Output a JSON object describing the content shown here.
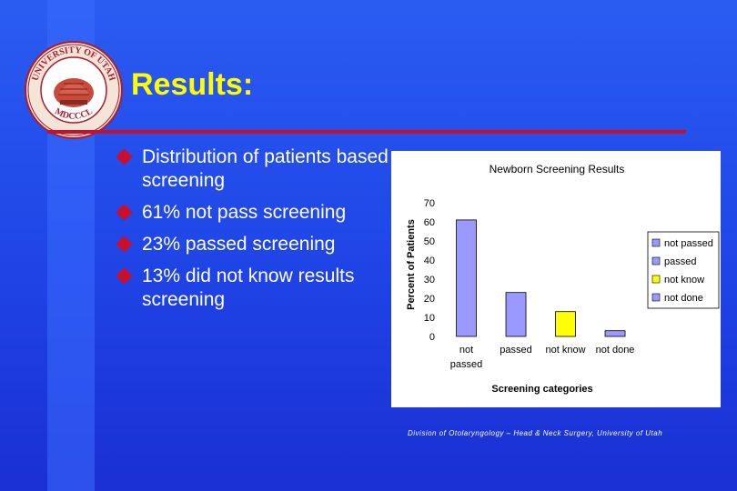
{
  "slide": {
    "title": "Results:",
    "seal_text_top": "UNIVERSITY OF UTAH",
    "seal_text_bottom": "MDCCCL",
    "bullets": [
      {
        "text": "Distribution of patients based screening"
      },
      {
        "text": "61% not pass screening"
      },
      {
        "text": "23% passed screening"
      },
      {
        "text": "13% did not know results screening"
      }
    ],
    "footer": "Division of Otolaryngology – Head & Neck Surgery, University of Utah"
  },
  "colors": {
    "title": "#ffff00",
    "accent": "#c8102e",
    "bar_not_passed": "#9999ff",
    "bar_passed": "#9999ff",
    "bar_not_know": "#ffff00",
    "bar_not_done": "#9999ff"
  },
  "chart_data": {
    "type": "bar",
    "title": "Newborn Screening Results",
    "xlabel": "Screening categories",
    "ylabel": "Percent of Patients",
    "categories": [
      "not passed",
      "passed",
      "not know",
      "not done"
    ],
    "values": [
      61,
      23,
      13,
      3
    ],
    "colors": [
      "#9999ff",
      "#9999ff",
      "#ffff00",
      "#9999ff"
    ],
    "ylim": [
      0,
      70
    ],
    "yticks": [
      0,
      10,
      20,
      30,
      40,
      50,
      60,
      70
    ],
    "grid": false,
    "legend": {
      "placement": "right",
      "entries": [
        "not passed",
        "passed",
        "not know",
        "not done"
      ],
      "colors": [
        "#9999ff",
        "#9999ff",
        "#ffff00",
        "#9999ff"
      ]
    }
  }
}
